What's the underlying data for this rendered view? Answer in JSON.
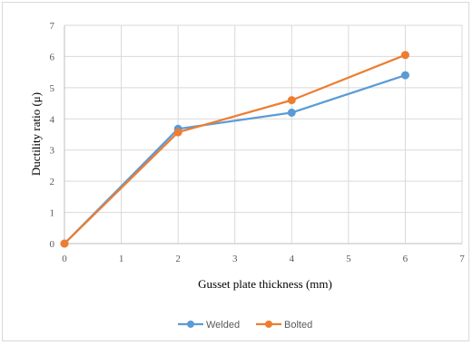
{
  "chart_data": {
    "type": "line",
    "xlabel": "Gusset plate thickness (mm)",
    "ylabel": "Ductility ratio (μ)",
    "xlim": [
      0,
      7
    ],
    "ylim": [
      0,
      7
    ],
    "x_ticks": [
      0,
      1,
      2,
      3,
      4,
      5,
      6,
      7
    ],
    "y_ticks": [
      0,
      1,
      2,
      3,
      4,
      5,
      6,
      7
    ],
    "grid": true,
    "legend_position": "bottom",
    "series": [
      {
        "name": "Welded",
        "color": "#5b9bd5",
        "x": [
          0,
          2,
          4,
          6
        ],
        "y": [
          0,
          3.68,
          4.2,
          5.4
        ]
      },
      {
        "name": "Bolted",
        "color": "#ed7d31",
        "x": [
          0,
          2,
          4,
          6
        ],
        "y": [
          0,
          3.57,
          4.6,
          6.05
        ]
      }
    ]
  }
}
